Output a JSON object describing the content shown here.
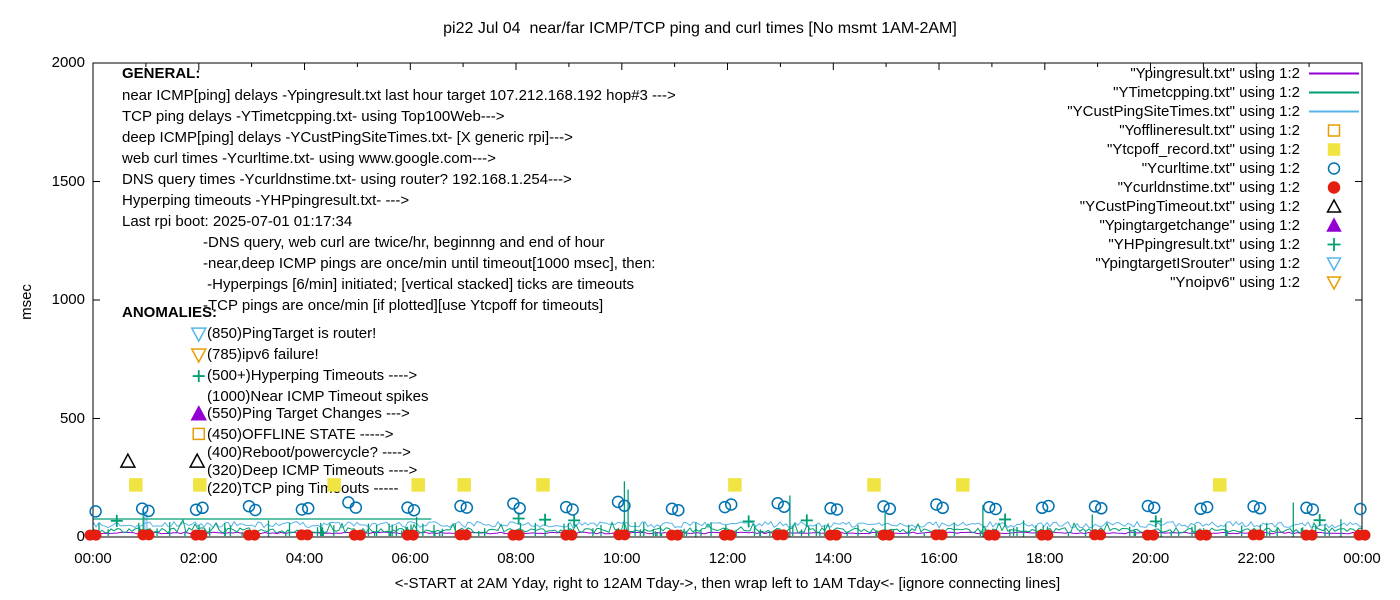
{
  "title": "pi22 Jul 04  near/far ICMP/TCP ping and curl times [No msmt 1AM-2AM]",
  "axes": {
    "ylabel": "msec",
    "xlabel": "<-START at 2AM Yday, right to 12AM Tday->, then wrap left to 1AM Tday<- [ignore connecting lines]",
    "yticks": [
      "0",
      "500",
      "1000",
      "1500",
      "2000"
    ],
    "xticks": [
      "00:00",
      "02:00",
      "04:00",
      "06:00",
      "08:00",
      "10:00",
      "12:00",
      "14:00",
      "16:00",
      "18:00",
      "20:00",
      "22:00",
      "00:00"
    ]
  },
  "general": {
    "header": "GENERAL:",
    "lines": [
      "near ICMP[ping] delays -Ypingresult.txt last hour target 107.212.168.192 hop#3 --->",
      "TCP ping delays -YTimetcpping.txt- using Top100Web--->",
      "deep ICMP[ping] delays -YCustPingSiteTimes.txt- [X generic rpi]--->",
      "web curl times -Ycurltime.txt- using www.google.com--->",
      "DNS query times -Ycurldnstime.txt- using router? 192.168.1.254--->",
      "Hyperping timeouts -YHPpingresult.txt- --->",
      "Last rpi boot: 2025-07-01 01:17:34"
    ],
    "notes": [
      "-DNS query, web curl are twice/hr, beginnng and end of hour",
      "-near,deep ICMP pings are once/min until timeout[1000 msec], then:",
      " -Hyperpings [6/min] initiated; [vertical stacked] ticks are timeouts",
      "-TCP pings are once/min [if plotted][use Ytcpoff for timeouts]"
    ]
  },
  "anomalies": {
    "header": "ANOMALIES:",
    "items": [
      "(850)PingTarget is router!",
      "(785)ipv6 failure!",
      "(500+)Hyperping Timeouts ---->",
      "(1000)Near ICMP Timeout spikes",
      "(550)Ping Target Changes --->",
      "(450)OFFLINE STATE ----->",
      "(400)Reboot/powercycle? ---->",
      "(320)Deep ICMP Timeouts ---->",
      "(220)TCP ping Timeouts -----"
    ]
  },
  "legend": {
    "entries": [
      {
        "label": "\"Ypingresult.txt\" using 1:2",
        "sample": "line",
        "color": "#9400d3",
        "fill": false
      },
      {
        "label": "\"YTimetcpping.txt\" using 1:2",
        "sample": "line",
        "color": "#009e73",
        "fill": false
      },
      {
        "label": "\"YCustPingSiteTimes.txt\" using 1:2",
        "sample": "line",
        "color": "#56b4e9",
        "fill": false
      },
      {
        "label": "\"Yofflineresult.txt\" using 1:2",
        "sample": "square",
        "color": "#e69f00",
        "fill": false
      },
      {
        "label": "\"Ytcpoff_record.txt\" using 1:2",
        "sample": "square",
        "color": "#f0e442",
        "fill": true
      },
      {
        "label": "\"Ycurltime.txt\" using 1:2",
        "sample": "circle",
        "color": "#0072b2",
        "fill": false
      },
      {
        "label": "\"Ycurldnstime.txt\" using 1:2",
        "sample": "circle",
        "color": "#e51e10",
        "fill": true
      },
      {
        "label": "\"YCustPingTimeout.txt\" using 1:2",
        "sample": "triangle-up",
        "color": "#000000",
        "fill": false
      },
      {
        "label": "\"Ypingtargetchange\" using 1:2",
        "sample": "triangle-up",
        "color": "#9400d3",
        "fill": true
      },
      {
        "label": "\"YHPpingresult.txt\" using 1:2",
        "sample": "plus",
        "color": "#009e73",
        "fill": false
      },
      {
        "label": "\"YpingtargetISrouter\" using 1:2",
        "sample": "triangle-down",
        "color": "#56b4e9",
        "fill": false
      },
      {
        "label": "\"Ynoipv6\" using 1:2",
        "sample": "triangle-down",
        "color": "#e69f00",
        "fill": false
      }
    ]
  },
  "chart_data": {
    "type": "scatter",
    "title": "pi22 Jul 04  near/far ICMP/TCP ping and curl times [No msmt 1AM-2AM]",
    "ylabel": "msec",
    "xlabel": "<-START at 2AM Yday, right to 12AM Tday->, then wrap left to 1AM Tday<- [ignore connecting lines]",
    "ylim": [
      0,
      2000
    ],
    "x_axis_hours": [
      0,
      24
    ],
    "ytick_values": [
      0,
      500,
      1000,
      1500,
      2000
    ],
    "xtick_hours": [
      0,
      2,
      4,
      6,
      8,
      10,
      12,
      14,
      16,
      18,
      20,
      22,
      24
    ],
    "grid": false,
    "series": [
      {
        "name": "Ypingresult.txt",
        "style": "line",
        "color": "#9400d3",
        "approx_msec": 17
      },
      {
        "name": "YTimetcpping.txt",
        "style": "noisy-line",
        "color": "#009e73",
        "approx_msec": 28,
        "elevated_segment": {
          "hours": [
            0,
            6.4
          ],
          "msec": 76
        }
      },
      {
        "name": "YCustPingSiteTimes.txt",
        "style": "noisy-line",
        "color": "#56b4e9",
        "approx_msec": 52
      },
      {
        "name": "Yofflineresult.txt",
        "style": "open-square",
        "color": "#e69f00",
        "points": [
          [
            2.0,
            435
          ]
        ]
      },
      {
        "name": "Ytcpoff_record.txt",
        "style": "filled-square",
        "color": "#f0e442",
        "points": [
          [
            0.81,
            220
          ],
          [
            2.02,
            220
          ],
          [
            4.56,
            220
          ],
          [
            6.15,
            220
          ],
          [
            7.02,
            220
          ],
          [
            8.51,
            220
          ],
          [
            12.14,
            220
          ],
          [
            14.77,
            220
          ],
          [
            16.45,
            220
          ],
          [
            21.31,
            220
          ]
        ]
      },
      {
        "name": "Ycurltime.txt",
        "style": "open-circle",
        "color": "#0072b2",
        "points": [
          [
            0.05,
            108
          ],
          [
            0.93,
            120
          ],
          [
            1.05,
            110
          ],
          [
            1.95,
            115
          ],
          [
            2.07,
            123
          ],
          [
            2.95,
            130
          ],
          [
            3.07,
            114
          ],
          [
            3.95,
            116
          ],
          [
            4.07,
            121
          ],
          [
            4.83,
            146
          ],
          [
            4.97,
            124
          ],
          [
            5.95,
            124
          ],
          [
            6.07,
            113
          ],
          [
            6.95,
            131
          ],
          [
            7.07,
            124
          ],
          [
            7.95,
            141
          ],
          [
            8.07,
            121
          ],
          [
            8.95,
            126
          ],
          [
            9.07,
            116
          ],
          [
            9.93,
            148
          ],
          [
            10.05,
            132
          ],
          [
            10.95,
            119
          ],
          [
            11.07,
            113
          ],
          [
            11.95,
            126
          ],
          [
            12.07,
            137
          ],
          [
            12.95,
            142
          ],
          [
            13.07,
            128
          ],
          [
            13.95,
            121
          ],
          [
            14.07,
            116
          ],
          [
            14.95,
            129
          ],
          [
            15.07,
            119
          ],
          [
            15.95,
            137
          ],
          [
            16.07,
            123
          ],
          [
            16.95,
            126
          ],
          [
            17.07,
            118
          ],
          [
            17.95,
            123
          ],
          [
            18.07,
            131
          ],
          [
            18.95,
            129
          ],
          [
            19.07,
            121
          ],
          [
            19.95,
            131
          ],
          [
            20.07,
            123
          ],
          [
            20.95,
            119
          ],
          [
            21.07,
            126
          ],
          [
            21.95,
            129
          ],
          [
            22.07,
            121
          ],
          [
            22.95,
            123
          ],
          [
            23.07,
            116
          ],
          [
            23.97,
            118
          ]
        ]
      },
      {
        "name": "Ycurldnstime.txt",
        "style": "filled-circle",
        "color": "#e51e10",
        "points": [
          [
            0,
            8
          ],
          [
            1,
            9
          ],
          [
            2,
            8
          ],
          [
            3,
            8
          ],
          [
            4,
            9
          ],
          [
            5,
            8
          ],
          [
            6,
            8
          ],
          [
            7,
            9
          ],
          [
            8,
            8
          ],
          [
            9,
            8
          ],
          [
            10,
            9
          ],
          [
            11,
            8
          ],
          [
            12,
            8
          ],
          [
            13,
            9
          ],
          [
            14,
            8
          ],
          [
            15,
            8
          ],
          [
            16,
            9
          ],
          [
            17,
            8
          ],
          [
            18,
            8
          ],
          [
            19,
            9
          ],
          [
            20,
            8
          ],
          [
            21,
            8
          ],
          [
            22,
            9
          ],
          [
            23,
            8
          ],
          [
            24,
            8
          ]
        ]
      },
      {
        "name": "YCustPingTimeout.txt",
        "style": "open-triangle-up",
        "color": "#000000",
        "points": [
          [
            0.66,
            320
          ],
          [
            1.97,
            320
          ]
        ]
      },
      {
        "name": "Ypingtargetchange",
        "style": "filled-triangle-up",
        "color": "#9400d3",
        "points": [
          [
            2.0,
            520
          ]
        ]
      },
      {
        "name": "YHPpingresult.txt",
        "style": "plus",
        "color": "#009e73",
        "points": [
          [
            2.0,
            679
          ],
          [
            0.45,
            68
          ],
          [
            8.05,
            78
          ],
          [
            8.55,
            73
          ],
          [
            9.1,
            70
          ],
          [
            12.4,
            66
          ],
          [
            13.5,
            70
          ],
          [
            17.25,
            74
          ],
          [
            20.1,
            66
          ],
          [
            23.2,
            71
          ]
        ],
        "timeout_spikes": [
          [
            0.95,
            115
          ],
          [
            3.32,
            70
          ],
          [
            6.12,
            85
          ],
          [
            10.05,
            235
          ],
          [
            10.12,
            200
          ],
          [
            11.4,
            60
          ],
          [
            13.18,
            175
          ],
          [
            14.98,
            100
          ],
          [
            16.83,
            135
          ],
          [
            17.6,
            70
          ],
          [
            18.9,
            95
          ],
          [
            20.2,
            80
          ],
          [
            22.7,
            145
          ],
          [
            23.6,
            75
          ]
        ]
      },
      {
        "name": "YpingtargetISrouter",
        "style": "open-triangle-down",
        "color": "#56b4e9",
        "points": [
          [
            2.0,
            856
          ]
        ]
      },
      {
        "name": "Ynoipv6",
        "style": "open-triangle-down",
        "color": "#e69f00",
        "points": [
          [
            2.0,
            768
          ]
        ]
      }
    ]
  }
}
